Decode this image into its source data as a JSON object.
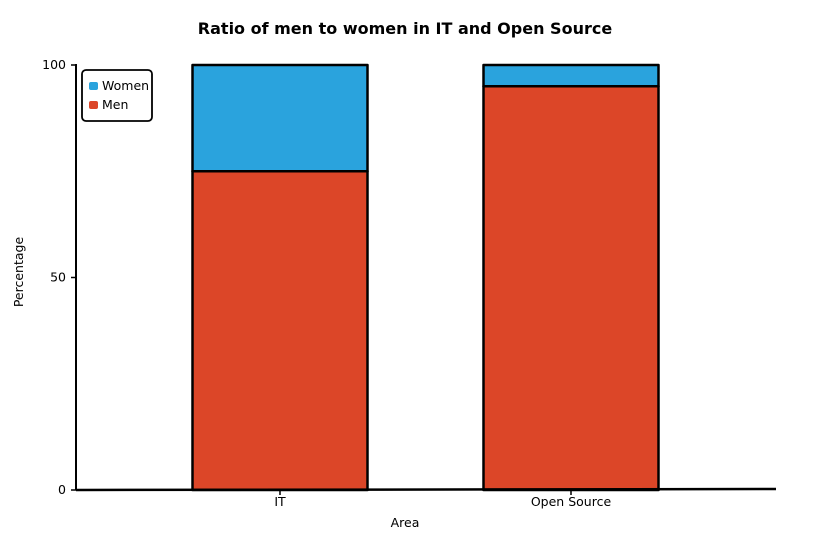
{
  "chart_data": {
    "type": "bar",
    "stacked": true,
    "title": "Ratio of men to women in IT and Open Source",
    "xlabel": "Area",
    "ylabel": "Percentage",
    "categories": [
      "IT",
      "Open Source"
    ],
    "series": [
      {
        "name": "Men",
        "values": [
          75,
          95
        ],
        "color": "#dc4628"
      },
      {
        "name": "Women",
        "values": [
          25,
          5
        ],
        "color": "#2aa3dd"
      }
    ],
    "ylim": [
      0,
      100
    ],
    "yticks": [
      "0",
      "50",
      "100"
    ],
    "grid": false,
    "legend_position": "top-left",
    "legend": [
      "Women",
      "Men"
    ]
  }
}
